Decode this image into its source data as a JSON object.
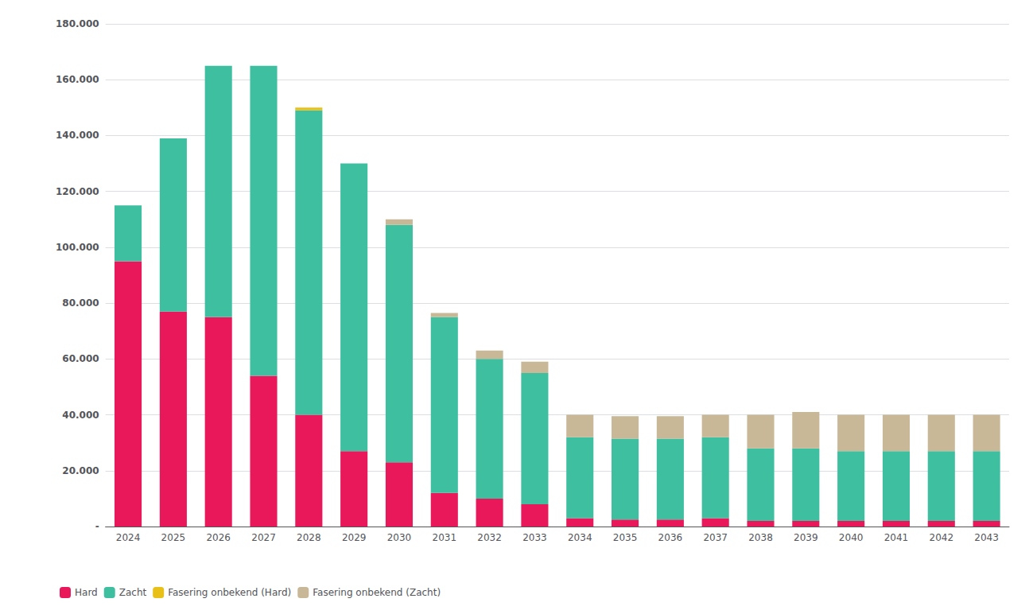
{
  "chart_data": {
    "type": "bar",
    "stacked": true,
    "grid": true,
    "legend": "lower left",
    "categories": [
      "2024",
      "2025",
      "2026",
      "2027",
      "2028",
      "2029",
      "2030",
      "2031",
      "2032",
      "2033",
      "2034",
      "2035",
      "2036",
      "2037",
      "2038",
      "2039",
      "2040",
      "2041",
      "2042",
      "2043"
    ],
    "series": [
      {
        "name": "Hard",
        "color": "#E8185A",
        "values": [
          95000,
          77000,
          75000,
          54000,
          40000,
          27000,
          23000,
          12000,
          10000,
          8000,
          3000,
          2500,
          2500,
          3000,
          2000,
          2000,
          2000,
          2000,
          2000,
          2000
        ]
      },
      {
        "name": "Zacht",
        "color": "#3DBFA0",
        "values": [
          20000,
          62000,
          90000,
          111000,
          109000,
          103000,
          85000,
          63000,
          50000,
          47000,
          29000,
          29000,
          29000,
          29000,
          26000,
          26000,
          25000,
          25000,
          25000,
          25000
        ]
      },
      {
        "name": "Fasering onbekend (Hard)",
        "color": "#E8C018",
        "values": [
          0,
          0,
          0,
          0,
          1000,
          0,
          0,
          0,
          0,
          0,
          0,
          0,
          0,
          0,
          0,
          0,
          0,
          0,
          0,
          0
        ]
      },
      {
        "name": "Fasering onbekend (Zacht)",
        "color": "#C8B898",
        "values": [
          0,
          0,
          0,
          0,
          0,
          0,
          2000,
          1500,
          3000,
          4000,
          8000,
          8000,
          8000,
          8000,
          12000,
          13000,
          13000,
          13000,
          13000,
          13000
        ]
      }
    ],
    "ylim": [
      0,
      180000
    ],
    "yticks": [
      {
        "value": 0,
        "label": "-"
      },
      {
        "value": 20000,
        "label": "20.000"
      },
      {
        "value": 40000,
        "label": "40.000"
      },
      {
        "value": 60000,
        "label": "60.000"
      },
      {
        "value": 80000,
        "label": "80.000"
      },
      {
        "value": 100000,
        "label": "100.000"
      },
      {
        "value": 120000,
        "label": "120.000"
      },
      {
        "value": 140000,
        "label": "140.000"
      },
      {
        "value": 160000,
        "label": "160.000"
      },
      {
        "value": 180000,
        "label": "180.000"
      }
    ]
  }
}
